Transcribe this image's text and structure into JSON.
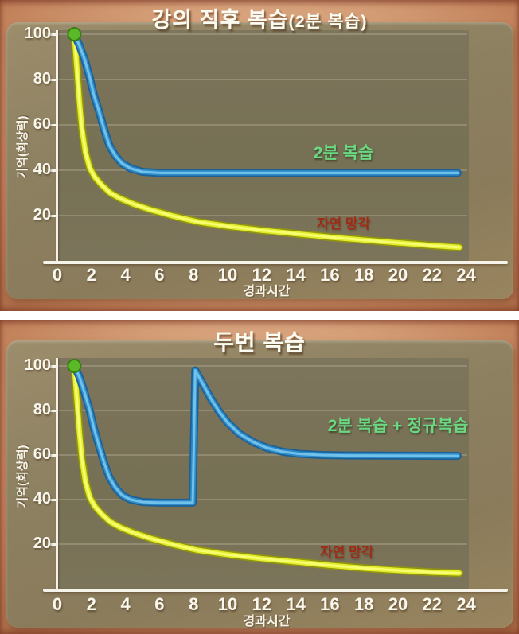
{
  "chart_data": [
    {
      "type": "line",
      "title": "강의 직후 복습",
      "title_suffix": "(2분 복습)",
      "xlabel": "경과시간",
      "ylabel": "기억(회상력)",
      "xlim": [
        0,
        24.6
      ],
      "ylim": [
        0,
        102
      ],
      "x_ticks": [
        0,
        2,
        4,
        6,
        8,
        10,
        12,
        14,
        16,
        18,
        20,
        22,
        24
      ],
      "y_ticks": [
        20,
        40,
        60,
        80,
        100
      ],
      "grid": "horizontal",
      "legend_position": "inline-labels",
      "start_marker": {
        "x": 1,
        "y": 100,
        "fill": "#5bb829",
        "stroke": "#35800f"
      },
      "series": [
        {
          "name": "자연 망각",
          "kind": "natural-forgetting",
          "label_color": "#9b2d18",
          "label_anchor": [
            16.8,
            13
          ],
          "stroke": [
            "#8e9312",
            "#e3ec2b",
            "#f7fd70"
          ],
          "points": [
            [
              1,
              100
            ],
            [
              1.15,
              85
            ],
            [
              1.3,
              70
            ],
            [
              1.45,
              58
            ],
            [
              1.65,
              48
            ],
            [
              1.9,
              41
            ],
            [
              2.2,
              37
            ],
            [
              2.6,
              33.5
            ],
            [
              3.1,
              30
            ],
            [
              3.7,
              27.5
            ],
            [
              4.5,
              25
            ],
            [
              5.5,
              22.5
            ],
            [
              6.8,
              19.8
            ],
            [
              8.2,
              17.3
            ],
            [
              10,
              15.3
            ],
            [
              12,
              13.5
            ],
            [
              14,
              12
            ],
            [
              16,
              10.5
            ],
            [
              18,
              9.2
            ],
            [
              20,
              8
            ],
            [
              22,
              6.8
            ],
            [
              23.6,
              6
            ]
          ]
        },
        {
          "name": "2분 복습",
          "kind": "two-minute-review",
          "label_color": "#6ad981",
          "label_anchor": [
            16.8,
            45
          ],
          "stroke": [
            "#1c6096",
            "#2f8cc8",
            "#70c2ea"
          ],
          "points": [
            [
              1,
              100
            ],
            [
              1.3,
              95
            ],
            [
              1.6,
              89
            ],
            [
              1.9,
              81
            ],
            [
              2.15,
              73
            ],
            [
              2.45,
              66
            ],
            [
              2.75,
              58
            ],
            [
              3.05,
              51
            ],
            [
              3.4,
              46.5
            ],
            [
              3.8,
              43
            ],
            [
              4.3,
              40.8
            ],
            [
              5,
              39.3
            ],
            [
              6,
              38.8
            ],
            [
              23.5,
              38.8
            ]
          ]
        }
      ]
    },
    {
      "type": "line",
      "title": "두번 복습",
      "title_suffix": "",
      "xlabel": "경과시간",
      "ylabel": "기억(회상력)",
      "xlim": [
        0,
        24.6
      ],
      "ylim": [
        0,
        102
      ],
      "x_ticks": [
        0,
        2,
        4,
        6,
        8,
        10,
        12,
        14,
        16,
        18,
        20,
        22,
        24
      ],
      "y_ticks": [
        20,
        40,
        60,
        80,
        100
      ],
      "grid": "horizontal",
      "legend_position": "inline-labels",
      "start_marker": {
        "x": 1,
        "y": 100,
        "fill": "#5bb829",
        "stroke": "#35800f"
      },
      "series": [
        {
          "name": "자연 망각",
          "kind": "natural-forgetting",
          "label_color": "#9b2d18",
          "label_anchor": [
            17,
            12.8
          ],
          "stroke": [
            "#8e9312",
            "#e3ec2b",
            "#f7fd70"
          ],
          "points": [
            [
              1,
              100
            ],
            [
              1.15,
              85
            ],
            [
              1.3,
              70
            ],
            [
              1.45,
              58
            ],
            [
              1.65,
              48
            ],
            [
              1.9,
              41
            ],
            [
              2.2,
              37
            ],
            [
              2.6,
              33.5
            ],
            [
              3.1,
              30
            ],
            [
              3.7,
              27.5
            ],
            [
              4.5,
              25
            ],
            [
              5.5,
              22.5
            ],
            [
              6.8,
              19.8
            ],
            [
              8.2,
              17.3
            ],
            [
              10,
              15.3
            ],
            [
              12,
              13.5
            ],
            [
              14,
              12
            ],
            [
              16,
              10.5
            ],
            [
              18,
              9.2
            ],
            [
              20,
              8.2
            ],
            [
              22,
              7.4
            ],
            [
              23.6,
              7
            ]
          ]
        },
        {
          "name": "2분 복습 + 정규복습",
          "kind": "two-minute-plus-regular-review",
          "label_color": "#6ad981",
          "label_anchor": [
            20,
            70.5
          ],
          "stroke": [
            "#1c6096",
            "#2f8cc8",
            "#70c2ea"
          ],
          "points": [
            [
              1,
              100
            ],
            [
              1.3,
              95
            ],
            [
              1.6,
              88
            ],
            [
              1.9,
              80
            ],
            [
              2.15,
              72
            ],
            [
              2.45,
              64
            ],
            [
              2.75,
              56.5
            ],
            [
              3.05,
              50
            ],
            [
              3.4,
              45.5
            ],
            [
              3.8,
              42
            ],
            [
              4.3,
              40
            ],
            [
              5,
              38.9
            ],
            [
              6,
              38.6
            ],
            [
              7.95,
              38.6
            ],
            [
              8.1,
              98
            ],
            [
              8.5,
              92.5
            ],
            [
              9,
              85.5
            ],
            [
              9.5,
              79.5
            ],
            [
              10,
              74.5
            ],
            [
              10.7,
              69.5
            ],
            [
              11.5,
              65.8
            ],
            [
              12.3,
              63.2
            ],
            [
              13.2,
              61.5
            ],
            [
              14.2,
              60.5
            ],
            [
              15.5,
              60
            ],
            [
              17,
              59.8
            ],
            [
              19,
              59.7
            ],
            [
              23.5,
              59.6
            ]
          ]
        }
      ]
    }
  ]
}
